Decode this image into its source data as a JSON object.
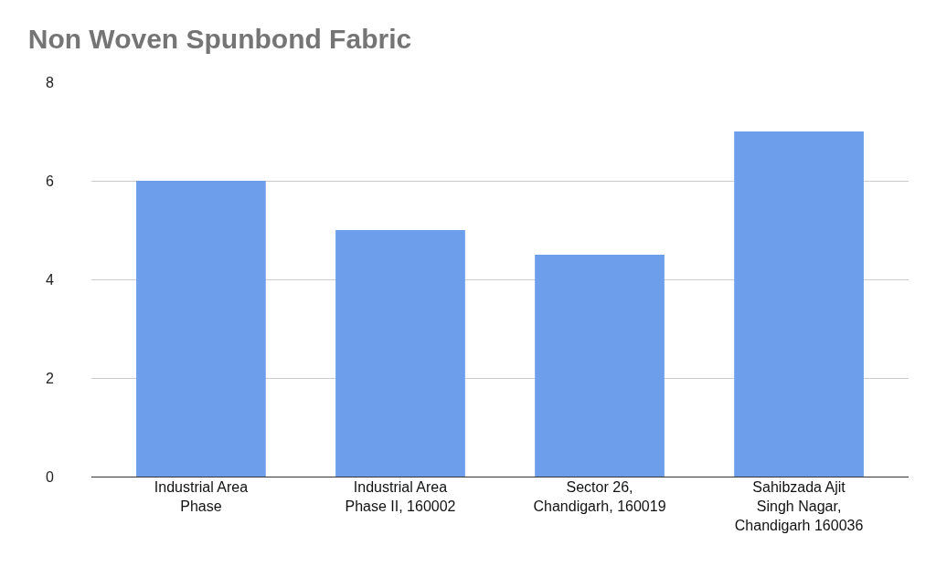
{
  "chart_data": {
    "type": "bar",
    "title": "Non Woven Spunbond Fabric",
    "categories": [
      "Industrial Area Phase",
      "Industrial Area Phase II, 160002",
      "Sector 26, Chandigarh, 160019",
      "Sahibzada Ajit Singh Nagar, Chandigarh 160036"
    ],
    "values": [
      6,
      5,
      4.5,
      7
    ],
    "color": "#6d9eeb",
    "ylim": [
      0,
      8
    ],
    "yticks": [
      0,
      2,
      4,
      6,
      8
    ],
    "grid": "y",
    "legend": false
  }
}
